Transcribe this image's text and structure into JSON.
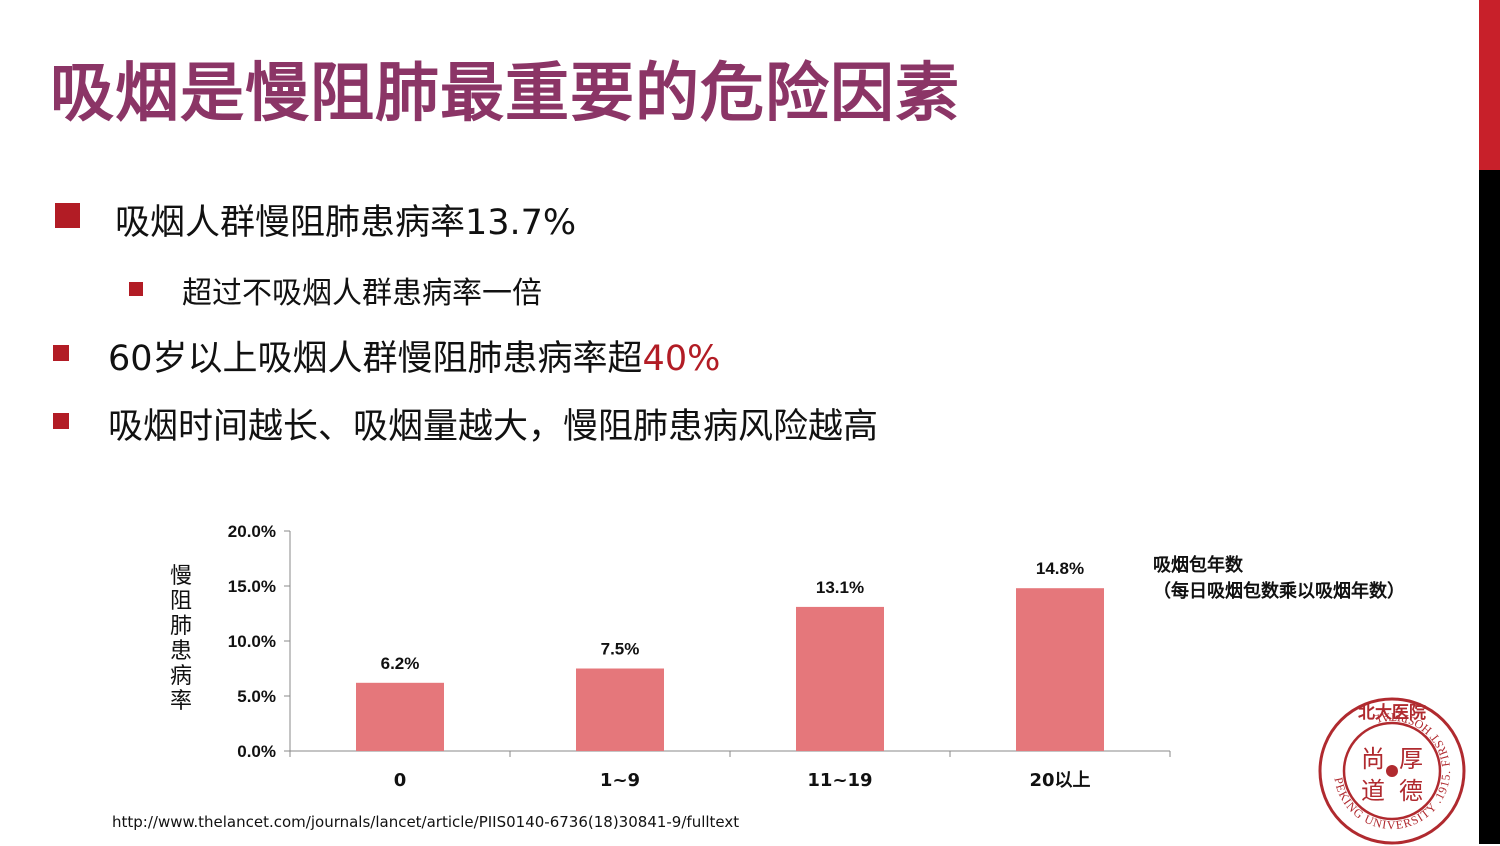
{
  "slide": {
    "title": "吸烟是慢阻肺最重要的危险因素",
    "bullets": {
      "b1": "吸烟人群慢阻肺患病率13.7%",
      "b2": "超过不吸烟人群患病率一倍",
      "b3_text": "60岁以上吸烟人群慢阻肺患病率超",
      "b3_highlight": "40%",
      "b4": "吸烟时间越长、吸烟量越大，慢阻肺患病风险越高"
    },
    "source_url": "http://www.thelancet.com/journals/lancet/article/PIIS0140-6736(18)30841-9/fulltext",
    "logo": {
      "text_top": "北大医院",
      "text_ring": "PEKING UNIVERSITY .1915. FIRST HOSPITAL",
      "chars": [
        "尚",
        "厚",
        "道",
        "德"
      ]
    }
  },
  "colors": {
    "title": "#8b3566",
    "accent_red": "#b21c25",
    "bar": "#e5777b",
    "side_bar_black": "#000000",
    "side_bar_red": "#c8202a"
  },
  "chart_data": {
    "type": "bar",
    "categories": [
      "0",
      "1~9",
      "11~19",
      "20以上"
    ],
    "values": [
      6.2,
      7.5,
      13.1,
      14.8
    ],
    "data_labels": [
      "6.2%",
      "7.5%",
      "13.1%",
      "14.8%"
    ],
    "ylabel": "慢阻肺患病率",
    "xlabel_title": "吸烟包年数",
    "xlabel_subtitle": "（每日吸烟包数乘以吸烟年数）",
    "ylim": [
      0,
      20
    ],
    "yticks": [
      0,
      5,
      10,
      15,
      20
    ],
    "ytick_labels": [
      "0.0%",
      "5.0%",
      "10.0%",
      "15.0%",
      "20.0%"
    ],
    "grid": false,
    "legend": "none"
  }
}
